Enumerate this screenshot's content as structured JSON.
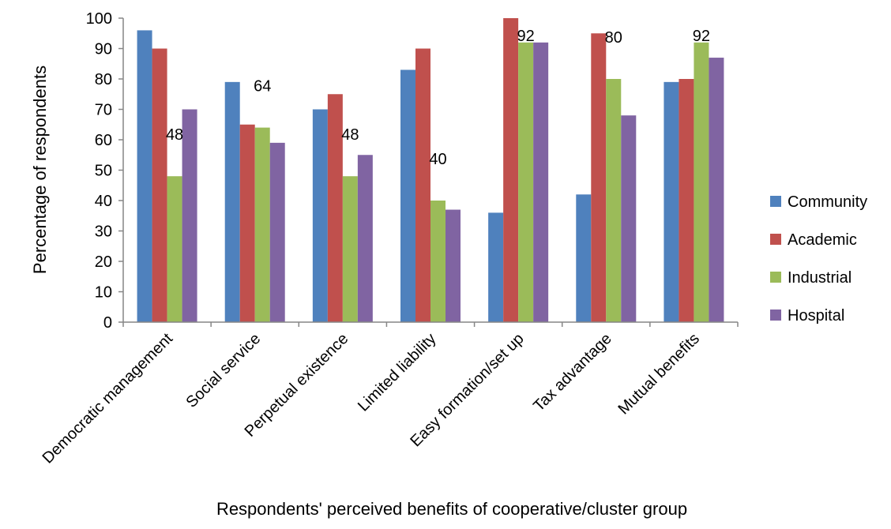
{
  "chart_data": {
    "type": "bar",
    "title": "",
    "xlabel": "Respondents' perceived benefits of cooperative/cluster group",
    "ylabel": "Percentage of respondents",
    "ylim": [
      0,
      100
    ],
    "yticks": [
      "0",
      "10",
      "20",
      "30",
      "40",
      "50",
      "60",
      "70",
      "80",
      "90",
      "100"
    ],
    "grid": false,
    "legend_position": "right",
    "categories": [
      "Democratic  management",
      "Social service",
      "Perpetual existence",
      "Limited liability",
      "Easy formation/set up",
      "Tax advantage",
      "Mutual benefits"
    ],
    "series": [
      {
        "name": "Community",
        "color": "#4F81BD",
        "values": [
          96,
          79,
          70,
          83,
          36,
          42,
          79
        ]
      },
      {
        "name": "Academic",
        "color": "#C0504D",
        "values": [
          90,
          65,
          75,
          90,
          100,
          95,
          80
        ]
      },
      {
        "name": "Industrial",
        "color": "#9BBB59",
        "values": [
          48,
          64,
          48,
          40,
          92,
          80,
          92
        ]
      },
      {
        "name": "Hospital",
        "color": "#8064A2",
        "values": [
          70,
          59,
          55,
          37,
          92,
          68,
          87
        ]
      }
    ],
    "data_labels": [
      {
        "series": 2,
        "category": 0,
        "text": "48"
      },
      {
        "series": 2,
        "category": 1,
        "text": "64"
      },
      {
        "series": 2,
        "category": 2,
        "text": "48"
      },
      {
        "series": 2,
        "category": 3,
        "text": "40"
      },
      {
        "series": 2,
        "category": 4,
        "text": "92"
      },
      {
        "series": 2,
        "category": 5,
        "text": "80"
      },
      {
        "series": 2,
        "category": 6,
        "text": "92"
      }
    ]
  }
}
